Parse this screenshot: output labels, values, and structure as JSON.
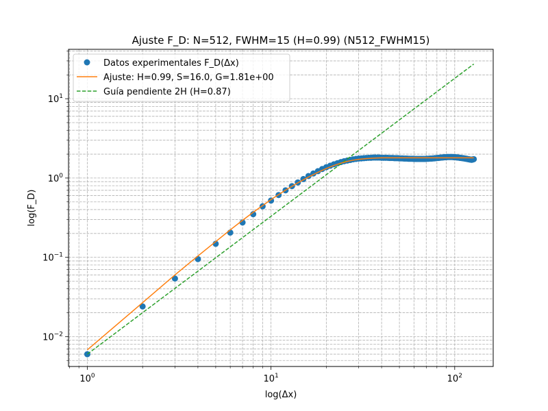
{
  "chart_data": {
    "type": "scatter",
    "title": "Ajuste F_D: N=512, FWHM=15 (H=0.99) (N512_FWHM15)",
    "xlabel": "log(Δx)",
    "ylabel": "log(F_D)",
    "xscale": "log",
    "yscale": "log",
    "xlim": [
      0.79,
      162
    ],
    "ylim": [
      0.0042,
      42
    ],
    "grid": "both major and minor, dashed",
    "legend_position": "upper-left",
    "x_tick_labels": [
      {
        "value": 1,
        "base": "10",
        "exp": "0"
      },
      {
        "value": 10,
        "base": "10",
        "exp": "1"
      },
      {
        "value": 100,
        "base": "10",
        "exp": "2"
      }
    ],
    "y_tick_labels": [
      {
        "value": 0.01,
        "base": "10",
        "exp": "−2"
      },
      {
        "value": 0.1,
        "base": "10",
        "exp": "−1"
      },
      {
        "value": 1,
        "base": "10",
        "exp": "0"
      },
      {
        "value": 10,
        "base": "10",
        "exp": "1"
      }
    ],
    "series": [
      {
        "name": "Datos experimentales F_D(Δx)",
        "kind": "markers",
        "color": "#1f77b4",
        "points": [
          [
            1,
            0.006
          ],
          [
            2,
            0.024
          ],
          [
            3,
            0.054
          ],
          [
            4,
            0.095
          ],
          [
            5,
            0.148
          ],
          [
            6,
            0.205
          ],
          [
            7,
            0.275
          ],
          [
            8,
            0.35
          ],
          [
            9,
            0.44
          ],
          [
            10,
            0.52
          ],
          [
            11,
            0.61
          ],
          [
            12,
            0.7
          ],
          [
            13,
            0.79
          ],
          [
            14,
            0.88
          ],
          [
            15,
            0.97
          ],
          [
            16,
            1.06
          ],
          [
            17,
            1.14
          ],
          [
            18,
            1.22
          ],
          [
            19,
            1.3
          ],
          [
            20,
            1.37
          ],
          [
            21,
            1.43
          ],
          [
            22,
            1.49
          ],
          [
            23,
            1.54
          ],
          [
            24,
            1.59
          ],
          [
            25,
            1.63
          ],
          [
            26,
            1.66
          ],
          [
            27,
            1.69
          ],
          [
            28,
            1.72
          ],
          [
            29,
            1.74
          ],
          [
            30,
            1.76
          ],
          [
            31,
            1.77
          ],
          [
            32,
            1.78
          ],
          [
            33,
            1.79
          ],
          [
            34,
            1.8
          ],
          [
            35,
            1.8
          ],
          [
            36,
            1.81
          ],
          [
            37,
            1.81
          ],
          [
            38,
            1.81
          ],
          [
            39,
            1.81
          ],
          [
            40,
            1.8
          ],
          [
            41,
            1.8
          ],
          [
            42,
            1.8
          ],
          [
            43,
            1.8
          ],
          [
            44,
            1.79
          ],
          [
            45,
            1.79
          ],
          [
            46,
            1.79
          ],
          [
            47,
            1.78
          ],
          [
            48,
            1.78
          ],
          [
            49,
            1.78
          ],
          [
            50,
            1.77
          ],
          [
            51,
            1.77
          ],
          [
            52,
            1.77
          ],
          [
            53,
            1.76
          ],
          [
            54,
            1.76
          ],
          [
            55,
            1.76
          ],
          [
            56,
            1.75
          ],
          [
            57,
            1.75
          ],
          [
            58,
            1.75
          ],
          [
            59,
            1.75
          ],
          [
            60,
            1.74
          ],
          [
            61,
            1.74
          ],
          [
            62,
            1.74
          ],
          [
            63,
            1.74
          ],
          [
            64,
            1.74
          ],
          [
            65,
            1.74
          ],
          [
            66,
            1.74
          ],
          [
            67,
            1.74
          ],
          [
            68,
            1.74
          ],
          [
            69,
            1.74
          ],
          [
            70,
            1.75
          ],
          [
            71,
            1.75
          ],
          [
            72,
            1.75
          ],
          [
            73,
            1.76
          ],
          [
            74,
            1.76
          ],
          [
            75,
            1.76
          ],
          [
            76,
            1.77
          ],
          [
            77,
            1.77
          ],
          [
            78,
            1.78
          ],
          [
            79,
            1.78
          ],
          [
            80,
            1.79
          ],
          [
            81,
            1.79
          ],
          [
            82,
            1.8
          ],
          [
            83,
            1.8
          ],
          [
            84,
            1.81
          ],
          [
            85,
            1.81
          ],
          [
            86,
            1.82
          ],
          [
            87,
            1.82
          ],
          [
            88,
            1.83
          ],
          [
            89,
            1.83
          ],
          [
            90,
            1.83
          ],
          [
            91,
            1.84
          ],
          [
            92,
            1.84
          ],
          [
            93,
            1.84
          ],
          [
            94,
            1.84
          ],
          [
            95,
            1.84
          ],
          [
            96,
            1.84
          ],
          [
            97,
            1.84
          ],
          [
            98,
            1.84
          ],
          [
            99,
            1.83
          ],
          [
            100,
            1.83
          ],
          [
            101,
            1.83
          ],
          [
            102,
            1.82
          ],
          [
            103,
            1.82
          ],
          [
            104,
            1.81
          ],
          [
            105,
            1.81
          ],
          [
            106,
            1.8
          ],
          [
            107,
            1.8
          ],
          [
            108,
            1.79
          ],
          [
            109,
            1.79
          ],
          [
            110,
            1.78
          ],
          [
            111,
            1.78
          ],
          [
            112,
            1.77
          ],
          [
            113,
            1.77
          ],
          [
            114,
            1.76
          ],
          [
            115,
            1.75
          ],
          [
            116,
            1.75
          ],
          [
            117,
            1.74
          ],
          [
            118,
            1.73
          ],
          [
            119,
            1.73
          ],
          [
            120,
            1.72
          ],
          [
            121,
            1.71
          ],
          [
            122,
            1.71
          ],
          [
            123,
            1.7
          ],
          [
            124,
            1.7
          ],
          [
            125,
            1.71
          ],
          [
            126,
            1.72
          ],
          [
            127,
            1.73
          ]
        ]
      },
      {
        "name": "Ajuste: H=0.99, S=16.0, G=1.81e+00",
        "kind": "line",
        "color": "#ff7f0e",
        "points": [
          [
            1,
            0.0068
          ],
          [
            2,
            0.0268
          ],
          [
            3,
            0.06
          ],
          [
            4,
            0.104
          ],
          [
            5,
            0.158
          ],
          [
            6,
            0.222
          ],
          [
            7,
            0.293
          ],
          [
            8,
            0.37
          ],
          [
            10,
            0.535
          ],
          [
            12,
            0.705
          ],
          [
            14,
            0.87
          ],
          [
            16,
            1.03
          ],
          [
            18,
            1.18
          ],
          [
            20,
            1.32
          ],
          [
            22,
            1.44
          ],
          [
            24,
            1.54
          ],
          [
            26,
            1.62
          ],
          [
            28,
            1.68
          ],
          [
            30,
            1.72
          ],
          [
            33,
            1.76
          ],
          [
            36,
            1.78
          ],
          [
            40,
            1.8
          ],
          [
            45,
            1.8
          ],
          [
            50,
            1.8
          ],
          [
            60,
            1.8
          ],
          [
            80,
            1.8
          ],
          [
            100,
            1.8
          ],
          [
            127,
            1.8
          ]
        ]
      },
      {
        "name": "Guía pendiente 2H (H=0.87)",
        "kind": "dashed-line",
        "color": "#2ca02c",
        "points": [
          [
            1,
            0.006
          ],
          [
            127,
            27.4
          ]
        ]
      }
    ]
  },
  "colors": {
    "background": "#ffffff",
    "grid": "#b0b0b0",
    "axes": "#000000"
  }
}
